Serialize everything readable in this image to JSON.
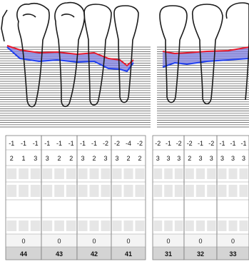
{
  "colors": {
    "gingival_margin": "#e8192c",
    "attachment_level": "#1f3ff0",
    "pocket_fill": "#8080e0",
    "tooth_outline": "#1a1a1a",
    "grid_line": "#4a4a4a",
    "cell_shade": "#e6e6e6",
    "footer_bg": "#d4d4d4"
  },
  "chart_data": {
    "type": "table",
    "gingival_margin_row": [
      [
        "-1",
        "-1",
        "-1"
      ],
      [
        "-1",
        "-1",
        "-1"
      ],
      [
        "-1",
        "-1",
        "-2"
      ],
      [
        "-2",
        "-4",
        "-2"
      ],
      [
        "-2",
        "-1",
        "-2"
      ],
      [
        "-2",
        "-1",
        "-2"
      ],
      [
        "-1",
        "-1",
        "-1"
      ]
    ],
    "probing_depth_row": [
      [
        "2",
        "1",
        "3"
      ],
      [
        "3",
        "2",
        "2"
      ],
      [
        "3",
        "2",
        "3"
      ],
      [
        "3",
        "2",
        "2"
      ],
      [
        "3",
        "3",
        "3"
      ],
      [
        "2",
        "3",
        "3"
      ],
      [
        "3",
        "3",
        "3"
      ]
    ],
    "summary_row": [
      "0",
      "0",
      "0",
      "0",
      "0",
      "0",
      "0"
    ],
    "tooth_numbers": [
      "44",
      "43",
      "42",
      "41",
      "31",
      "32",
      "33"
    ]
  }
}
